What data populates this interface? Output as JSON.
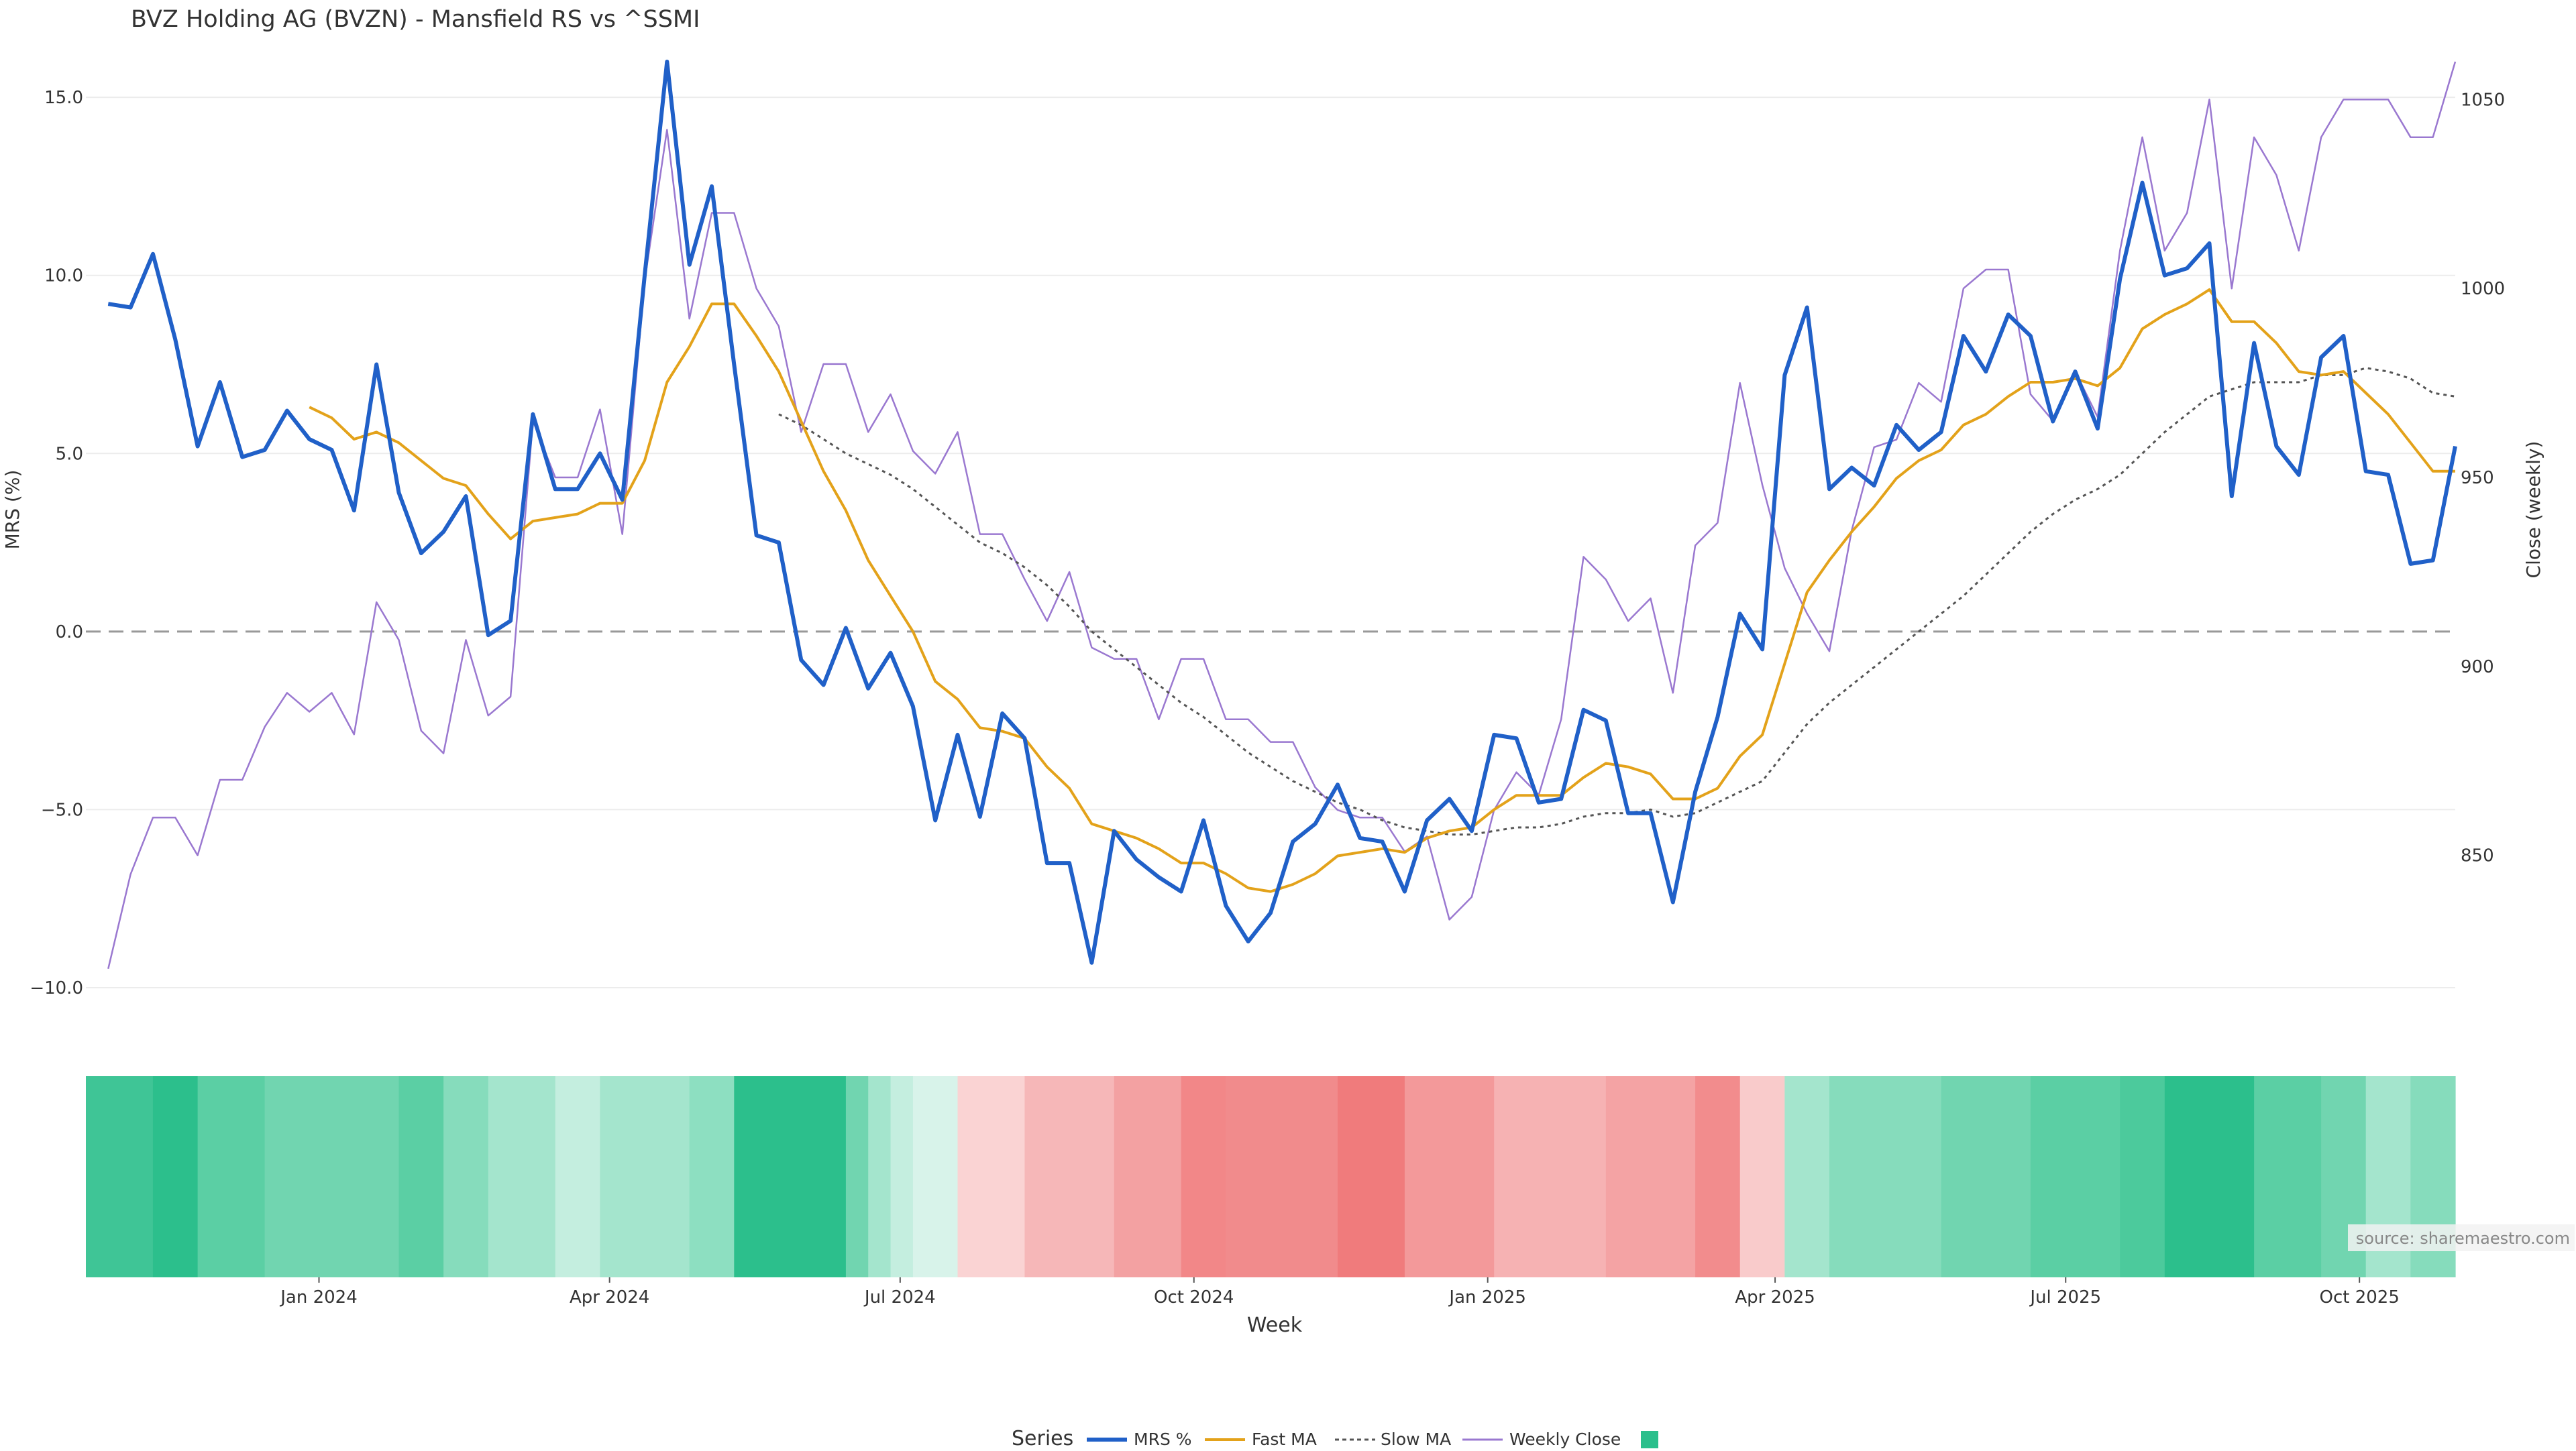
{
  "chart_data": {
    "type": "line",
    "title": "BVZ Holding AG (BVZN) - Mansfield RS vs ^SSMI",
    "xlabel": "Week",
    "ylabel": "MRS (%)",
    "y2label": "Close (weekly)",
    "source": "source: sharemaestro.com",
    "legend_title": "Series",
    "legend_position": "bottom-center",
    "grid": true,
    "y_ticks": [
      "15.0",
      "10.0",
      "5.0",
      "0.0",
      "−5.0",
      "−10.0"
    ],
    "y_tick_values": [
      15,
      10,
      5,
      0,
      -5,
      -10
    ],
    "y2_ticks": [
      "1050",
      "1000",
      "950",
      "900",
      "850"
    ],
    "y2_tick_values": [
      1050,
      1000,
      950,
      900,
      850
    ],
    "x_ticks": [
      "Jan 2024",
      "Apr 2024",
      "Jul 2024",
      "Oct 2024",
      "Jan 2025",
      "Apr 2025",
      "Jul 2025",
      "Oct 2025"
    ],
    "x_tick_dates": [
      "2024-01-01",
      "2024-04-01",
      "2024-07-01",
      "2024-10-01",
      "2025-01-01",
      "2025-04-01",
      "2025-07-01",
      "2025-10-01"
    ],
    "ylim": [
      -10,
      16
    ],
    "y2lim": [
      815,
      1060
    ],
    "x_start": "2023-10-20",
    "x_end": "2025-10-31",
    "reference_line": 0,
    "colors": {
      "mrs": "#2060c8",
      "fast": "#e3a21a",
      "slow": "#555555",
      "close": "#9a78d0",
      "grid": "#ececec",
      "axis_text": "#333333",
      "legend_swatch": "#2bbf8c"
    },
    "series": [
      {
        "name": "MRS %",
        "axis": "left",
        "values": [
          9.2,
          9.1,
          10.6,
          8.2,
          5.2,
          7.0,
          4.9,
          5.1,
          6.2,
          5.4,
          5.1,
          3.4,
          7.5,
          3.9,
          2.2,
          2.8,
          3.8,
          -0.1,
          0.3,
          6.1,
          4.0,
          4.0,
          5.0,
          3.7,
          10.0,
          16.0,
          10.3,
          12.5,
          7.5,
          2.7,
          2.5,
          -0.8,
          -1.5,
          0.1,
          -1.6,
          -0.6,
          -2.1,
          -5.3,
          -2.9,
          -5.2,
          -2.3,
          -3.0,
          -6.5,
          -6.5,
          -9.3,
          -5.6,
          -6.4,
          -6.9,
          -7.3,
          -5.3,
          -7.7,
          -8.7,
          -7.9,
          -5.9,
          -5.4,
          -4.3,
          -5.8,
          -5.9,
          -7.3,
          -5.3,
          -4.7,
          -5.6,
          -2.9,
          -3.0,
          -4.8,
          -4.7,
          -2.2,
          -2.5,
          -5.1,
          -5.1,
          -7.6,
          -4.5,
          -2.4,
          0.5,
          -0.5,
          7.2,
          9.1,
          4.0,
          4.6,
          4.1,
          5.8,
          5.1,
          5.6,
          8.3,
          7.3,
          8.9,
          8.3,
          5.9,
          7.3,
          5.7,
          9.9,
          12.6,
          10.0,
          10.2,
          10.9,
          3.8,
          8.1,
          5.2,
          4.4,
          7.7,
          8.3,
          4.5,
          4.4,
          1.9,
          2.0,
          5.2
        ]
      },
      {
        "name": "Fast MA",
        "axis": "left",
        "values": [
          null,
          null,
          null,
          null,
          null,
          null,
          null,
          null,
          null,
          6.3,
          6.0,
          5.4,
          5.6,
          5.3,
          4.8,
          4.3,
          4.1,
          3.3,
          2.6,
          3.1,
          3.2,
          3.3,
          3.6,
          3.6,
          4.8,
          7.0,
          8.0,
          9.2,
          9.2,
          8.3,
          7.3,
          5.9,
          4.5,
          3.4,
          2.0,
          1.0,
          0.0,
          -1.4,
          -1.9,
          -2.7,
          -2.8,
          -3.0,
          -3.8,
          -4.4,
          -5.4,
          -5.6,
          -5.8,
          -6.1,
          -6.5,
          -6.5,
          -6.8,
          -7.2,
          -7.3,
          -7.1,
          -6.8,
          -6.3,
          -6.2,
          -6.1,
          -6.2,
          -5.8,
          -5.6,
          -5.5,
          -5.0,
          -4.6,
          -4.6,
          -4.6,
          -4.1,
          -3.7,
          -3.8,
          -4.0,
          -4.7,
          -4.7,
          -4.4,
          -3.5,
          -2.9,
          -0.9,
          1.1,
          2.0,
          2.8,
          3.5,
          4.3,
          4.8,
          5.1,
          5.8,
          6.1,
          6.6,
          7.0,
          7.0,
          7.1,
          6.9,
          7.4,
          8.5,
          8.9,
          9.2,
          9.6,
          8.7,
          8.7,
          8.1,
          7.3,
          7.2,
          7.3,
          6.7,
          6.1,
          5.3,
          4.5,
          4.5
        ]
      },
      {
        "name": "Slow MA",
        "axis": "left",
        "values": [
          null,
          null,
          null,
          null,
          null,
          null,
          null,
          null,
          null,
          null,
          null,
          null,
          null,
          null,
          null,
          null,
          null,
          null,
          null,
          null,
          null,
          null,
          null,
          null,
          null,
          null,
          null,
          null,
          null,
          null,
          6.1,
          5.8,
          5.4,
          5.0,
          4.7,
          4.4,
          4.0,
          3.5,
          3.0,
          2.5,
          2.2,
          1.8,
          1.3,
          0.7,
          0.0,
          -0.5,
          -1.0,
          -1.5,
          -2.0,
          -2.4,
          -2.9,
          -3.4,
          -3.8,
          -4.2,
          -4.5,
          -4.8,
          -5.0,
          -5.3,
          -5.5,
          -5.6,
          -5.7,
          -5.7,
          -5.6,
          -5.5,
          -5.5,
          -5.4,
          -5.2,
          -5.1,
          -5.1,
          -5.0,
          -5.2,
          -5.1,
          -4.8,
          -4.5,
          -4.2,
          -3.4,
          -2.6,
          -2.0,
          -1.5,
          -1.0,
          -0.5,
          0.0,
          0.5,
          1.0,
          1.6,
          2.2,
          2.8,
          3.3,
          3.7,
          4.0,
          4.4,
          5.0,
          5.6,
          6.1,
          6.6,
          6.8,
          7.0,
          7.0,
          7.0,
          7.2,
          7.2,
          7.4,
          7.3,
          7.1,
          6.7,
          6.6
        ]
      },
      {
        "name": "Weekly Close",
        "axis": "right",
        "values": [
          820,
          845,
          860,
          860,
          850,
          870,
          870,
          884,
          893,
          888,
          893,
          882,
          917,
          907,
          883,
          877,
          907,
          887,
          892,
          965,
          950,
          950,
          968,
          935,
          1002,
          1042,
          992,
          1020,
          1020,
          1000,
          990,
          962,
          980,
          980,
          962,
          972,
          957,
          951,
          962,
          935,
          935,
          923,
          912,
          925,
          905,
          902,
          902,
          886,
          902,
          902,
          886,
          886,
          880,
          880,
          868,
          862,
          860,
          860,
          851,
          855,
          833,
          839,
          862,
          872,
          866,
          886,
          929,
          923,
          912,
          918,
          893,
          932,
          938,
          975,
          948,
          926,
          914,
          904,
          936,
          958,
          960,
          975,
          970,
          1000,
          1005,
          1005,
          972,
          965,
          978,
          966,
          1010,
          1040,
          1010,
          1020,
          1050,
          1000,
          1040,
          1030,
          1010,
          1040,
          1050,
          1050,
          1050,
          1040,
          1040,
          1060
        ]
      }
    ],
    "heatmap_strip": {
      "description_scale": "green = positive MRS, red = negative MRS",
      "bands": [
        {
          "start": "2023-10-20",
          "end": "2023-11-10",
          "color": "#3fc596"
        },
        {
          "start": "2023-11-10",
          "end": "2023-11-24",
          "color": "#2cbf8c"
        },
        {
          "start": "2023-11-24",
          "end": "2023-12-15",
          "color": "#5bcfa4"
        },
        {
          "start": "2023-12-15",
          "end": "2024-01-26",
          "color": "#71d5b0"
        },
        {
          "start": "2024-01-26",
          "end": "2024-02-09",
          "color": "#5bcfa4"
        },
        {
          "start": "2024-02-09",
          "end": "2024-02-23",
          "color": "#86dcbc"
        },
        {
          "start": "2024-02-23",
          "end": "2024-03-15",
          "color": "#a4e5cd"
        },
        {
          "start": "2024-03-15",
          "end": "2024-03-29",
          "color": "#c4eedf"
        },
        {
          "start": "2024-03-29",
          "end": "2024-04-26",
          "color": "#a4e5cd"
        },
        {
          "start": "2024-04-26",
          "end": "2024-05-10",
          "color": "#8ddfc1"
        },
        {
          "start": "2024-05-10",
          "end": "2024-06-14",
          "color": "#2cbf8c"
        },
        {
          "start": "2024-06-14",
          "end": "2024-06-21",
          "color": "#71d5b0"
        },
        {
          "start": "2024-06-21",
          "end": "2024-06-28",
          "color": "#a4e5cd"
        },
        {
          "start": "2024-06-28",
          "end": "2024-07-05",
          "color": "#c4eedf"
        },
        {
          "start": "2024-07-05",
          "end": "2024-07-19",
          "color": "#d8f3ea"
        },
        {
          "start": "2024-07-19",
          "end": "2024-08-09",
          "color": "#fad3d3"
        },
        {
          "start": "2024-08-09",
          "end": "2024-09-06",
          "color": "#f6b7b8"
        },
        {
          "start": "2024-09-06",
          "end": "2024-09-27",
          "color": "#f3a1a2"
        },
        {
          "start": "2024-09-27",
          "end": "2024-10-11",
          "color": "#f28788"
        },
        {
          "start": "2024-10-11",
          "end": "2024-11-15",
          "color": "#f18b8c"
        },
        {
          "start": "2024-11-15",
          "end": "2024-12-06",
          "color": "#f07b7c"
        },
        {
          "start": "2024-12-06",
          "end": "2025-01-03",
          "color": "#f3999a"
        },
        {
          "start": "2025-01-03",
          "end": "2025-02-07",
          "color": "#f6b2b3"
        },
        {
          "start": "2025-02-07",
          "end": "2025-03-07",
          "color": "#f4a3a4"
        },
        {
          "start": "2025-03-07",
          "end": "2025-03-21",
          "color": "#f28c8d"
        },
        {
          "start": "2025-03-21",
          "end": "2025-04-04",
          "color": "#f9cbcb"
        },
        {
          "start": "2025-04-04",
          "end": "2025-04-18",
          "color": "#a4e5cd"
        },
        {
          "start": "2025-04-18",
          "end": "2025-05-23",
          "color": "#86dcbc"
        },
        {
          "start": "2025-05-23",
          "end": "2025-06-20",
          "color": "#71d5b0"
        },
        {
          "start": "2025-06-20",
          "end": "2025-07-18",
          "color": "#5bcfa4"
        },
        {
          "start": "2025-07-18",
          "end": "2025-08-01",
          "color": "#4cca9c"
        },
        {
          "start": "2025-08-01",
          "end": "2025-08-29",
          "color": "#2cbf8c"
        },
        {
          "start": "2025-08-29",
          "end": "2025-09-19",
          "color": "#5bcfa4"
        },
        {
          "start": "2025-09-19",
          "end": "2025-10-03",
          "color": "#71d5b0"
        },
        {
          "start": "2025-10-03",
          "end": "2025-10-17",
          "color": "#a4e5cd"
        },
        {
          "start": "2025-10-17",
          "end": "2025-10-31",
          "color": "#86dcbc"
        }
      ]
    }
  }
}
